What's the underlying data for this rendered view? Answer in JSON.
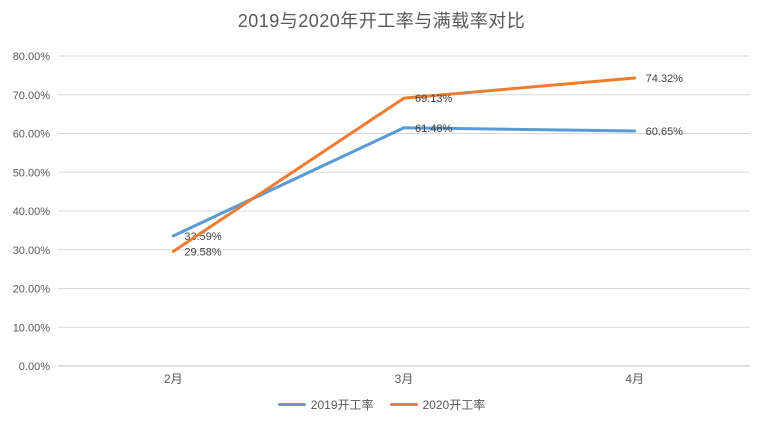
{
  "title": "2019与2020年开工率与满载率对比",
  "chart_data": {
    "type": "line",
    "categories": [
      "2月",
      "3月",
      "4月"
    ],
    "series": [
      {
        "name": "2019开工率",
        "color": "#5B9BD5",
        "values": [
          33.59,
          61.48,
          60.65
        ],
        "labels": [
          "33.59%",
          "61.48%",
          "60.65%"
        ]
      },
      {
        "name": "2020开工率",
        "color": "#ED7D31",
        "values": [
          29.58,
          69.13,
          74.32
        ],
        "labels": [
          "29.58%",
          "69.13%",
          "74.32%"
        ]
      }
    ],
    "ylim": [
      0,
      80
    ],
    "ytick_step": 10,
    "ytick_labels": [
      "0.00%",
      "10.00%",
      "20.00%",
      "30.00%",
      "40.00%",
      "50.00%",
      "60.00%",
      "70.00%",
      "80.00%"
    ],
    "grid": true,
    "legend_position": "bottom"
  },
  "colors": {
    "gridline": "#d9d9d9",
    "axis_line": "#bfbfbf",
    "tick_text": "#595959",
    "data_label": "#404040",
    "title_text": "#595959"
  }
}
